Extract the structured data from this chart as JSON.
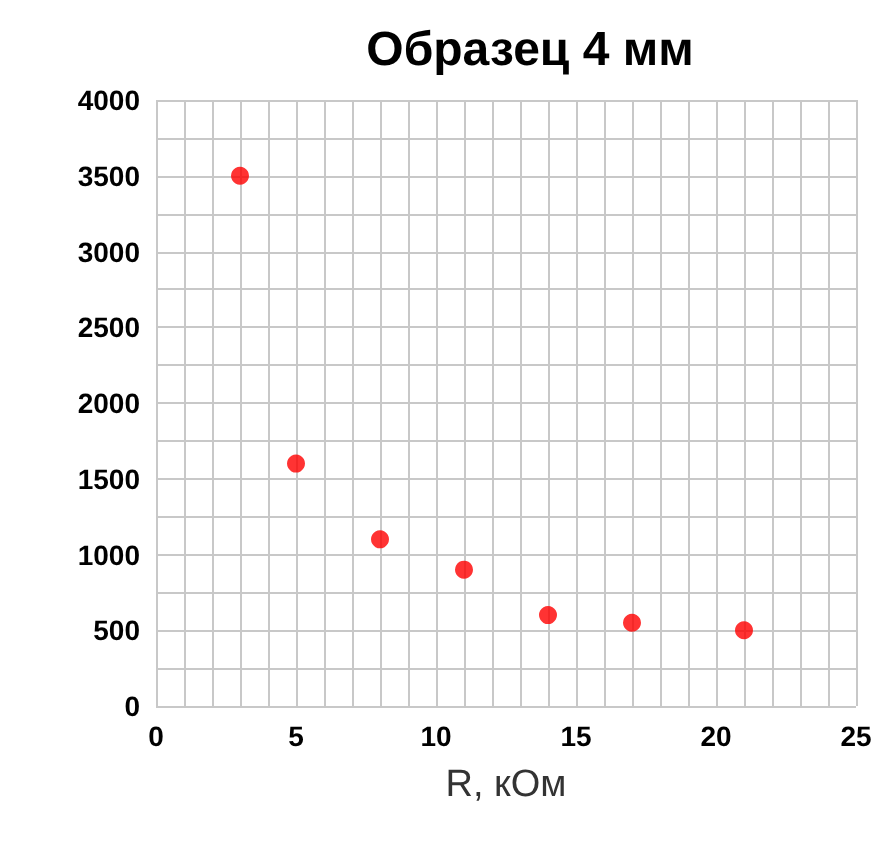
{
  "chart_data": {
    "type": "scatter",
    "title": "Образец 4 мм",
    "xlabel": "R, кОм",
    "x": [
      3,
      5,
      8,
      11,
      14,
      17,
      21
    ],
    "values": [
      3500,
      1600,
      1100,
      900,
      600,
      550,
      500
    ],
    "color": "#ff0000",
    "xlim": [
      0,
      25
    ],
    "xticks": [
      0,
      5,
      10,
      15,
      20,
      25
    ],
    "ylim": [
      0,
      4000
    ],
    "yticks": [
      0,
      500,
      1000,
      1500,
      2000,
      2500,
      3000,
      3500,
      4000
    ],
    "grid": true,
    "marker": "circle"
  }
}
